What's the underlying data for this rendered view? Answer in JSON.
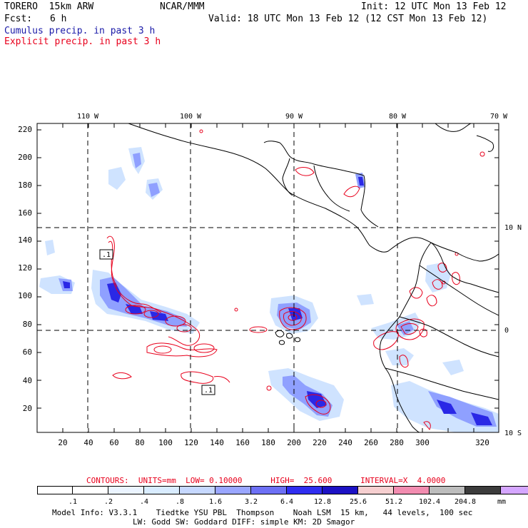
{
  "header": {
    "model": "TORERO  15km ARW",
    "org": "NCAR/MMM",
    "init": "Init: 12 UTC Mon 13 Feb 12",
    "fcst_label": "Fcst:",
    "fcst_value": "6 h",
    "valid": "Valid: 18 UTC Mon 13 Feb 12 (12 CST Mon 13 Feb 12)",
    "cumulus": "Cumulus precip. in past 3 h",
    "explicit": "Explicit precip. in past 3 h"
  },
  "map": {
    "top_lon_labels": [
      "110 W",
      "100 W",
      "90 W",
      "80 W",
      "70 W"
    ],
    "right_lat_labels": [
      "10 N",
      "0",
      "10 S"
    ],
    "y_ticks": [
      "20",
      "40",
      "60",
      "80",
      "100",
      "120",
      "140",
      "160",
      "180",
      "200",
      "220"
    ],
    "x_ticks": [
      "20",
      "40",
      "60",
      "80",
      "100",
      "120",
      "140",
      "160",
      "180",
      "200",
      "220",
      "240",
      "260",
      "280",
      "300",
      "320"
    ],
    "contour_labels": [
      ".1",
      ".1"
    ]
  },
  "contours_line": {
    "text": "CONTOURS:  UNITS=mm  LOW= 0.10000      HIGH=  25.600      INTERVAL=X  4.0000"
  },
  "colorbar": {
    "colors": [
      "#ffffff",
      "#ffffff",
      "#ebf4ff",
      "#d9ecff",
      "#c6d8ff",
      "#9aa6ff",
      "#6d70f5",
      "#2f2df0",
      "#1c11c4",
      "#f6cfd0",
      "#f28cb0",
      "#bdbdbd",
      "#3c3c3c",
      "#d5a6ff"
    ],
    "labels": [
      ".1",
      ".2",
      ".4",
      ".8",
      "1.6",
      "3.2",
      "6.4",
      "12.8",
      "25.6",
      "51.2",
      "102.4",
      "204.8"
    ],
    "units": "mm"
  },
  "footer": {
    "line1": "Model Info: V3.3.1    Tiedtke YSU PBL  Thompson    Noah LSM  15 km,   44 levels,  100 sec",
    "line2": "LW: Godd SW: Goddard DIFF: simple KM: 2D Smagor"
  }
}
